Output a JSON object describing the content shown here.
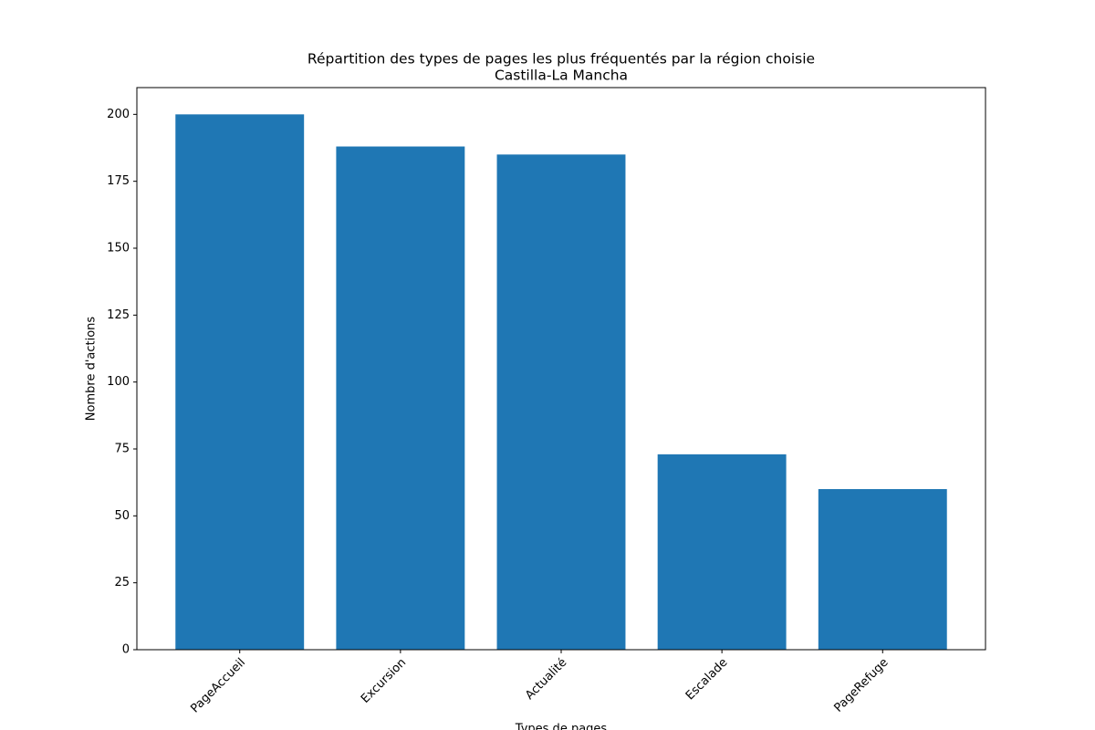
{
  "chart_data": {
    "type": "bar",
    "title": "Répartition des types de pages les plus fréquentés par la région choisie",
    "subtitle": "Castilla-La Mancha",
    "x_label": "Types de pages",
    "y_label": "Nombre d'actions",
    "categories": [
      "PageAccueil",
      "Excursion",
      "Actualité",
      "Escalade",
      "PageRefuge"
    ],
    "values": [
      200,
      188,
      185,
      73,
      60
    ],
    "color": "#1f77b4",
    "ylim": [
      0,
      210
    ],
    "yticks": [
      0,
      25,
      50,
      75,
      100,
      125,
      150,
      175,
      200
    ],
    "grid": false
  }
}
